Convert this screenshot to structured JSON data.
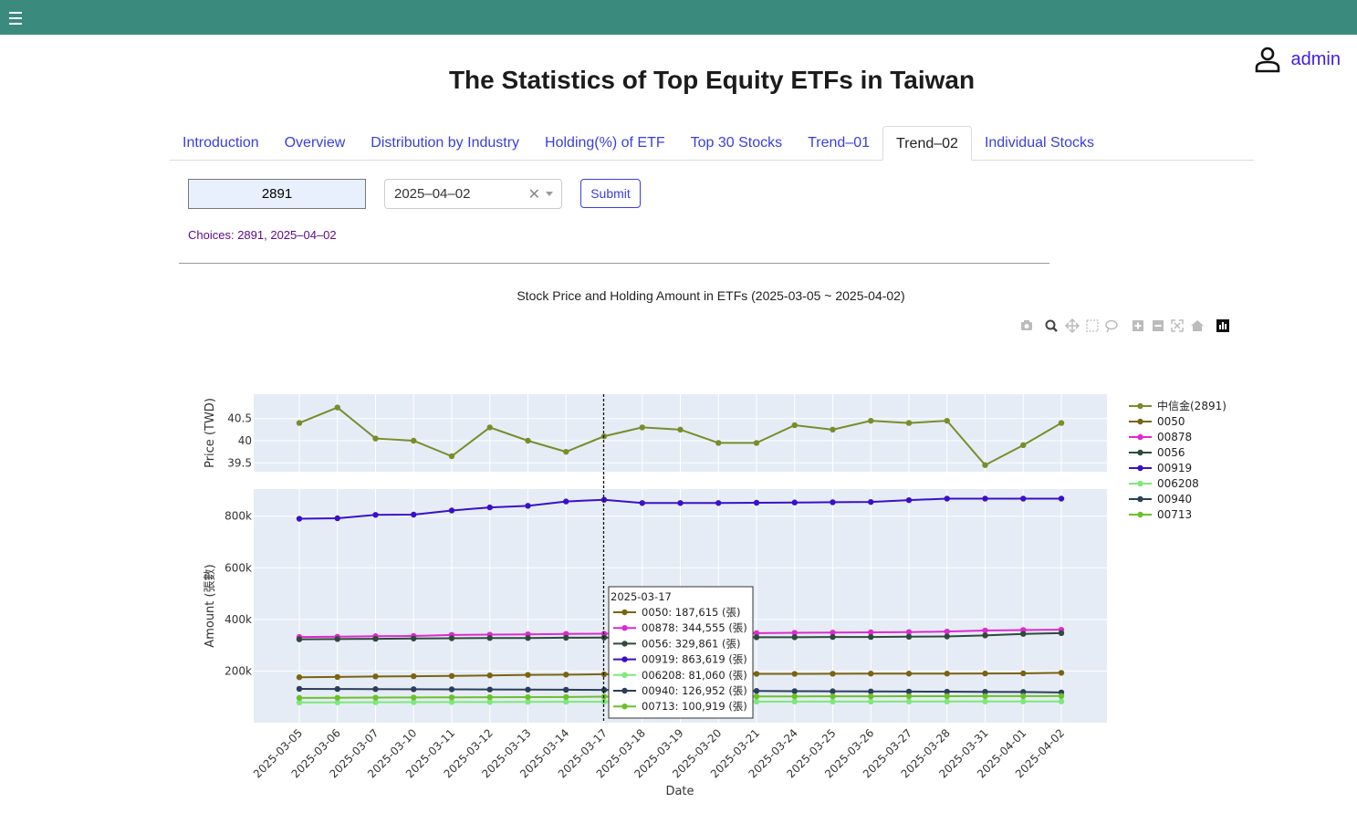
{
  "header": {
    "user": "admin"
  },
  "page": {
    "title": "The Statistics of Top Equity ETFs in Taiwan"
  },
  "tabs": [
    {
      "label": "Introduction"
    },
    {
      "label": "Overview"
    },
    {
      "label": "Distribution by Industry"
    },
    {
      "label": "Holding(%) of ETF"
    },
    {
      "label": "Top 30 Stocks"
    },
    {
      "label": "Trend–01"
    },
    {
      "label": "Trend–02",
      "active": true
    },
    {
      "label": "Individual Stocks"
    }
  ],
  "form": {
    "stock_value": "2891",
    "date_value": "2025–04–02",
    "submit_label": "Submit",
    "choices_text": "Choices: 2891, 2025–04–02"
  },
  "modebar": [
    "camera-icon",
    "zoom-icon",
    "pan-icon",
    "box-select-icon",
    "lasso-icon",
    "zoom-in-icon",
    "zoom-out-icon",
    "autoscale-icon",
    "reset-axes-icon",
    "plotly-logo-icon"
  ],
  "chart_data": {
    "type": "line",
    "title": "Stock Price and Holding Amount in ETFs (2025-03-05 ~ 2025-04-02)",
    "xlabel": "Date",
    "categories": [
      "2025-03-05",
      "2025-03-06",
      "2025-03-07",
      "2025-03-10",
      "2025-03-11",
      "2025-03-12",
      "2025-03-13",
      "2025-03-14",
      "2025-03-17",
      "2025-03-18",
      "2025-03-19",
      "2025-03-20",
      "2025-03-21",
      "2025-03-24",
      "2025-03-25",
      "2025-03-26",
      "2025-03-27",
      "2025-03-28",
      "2025-03-31",
      "2025-04-01",
      "2025-04-02"
    ],
    "price_panel": {
      "ylabel": "Price (TWD)",
      "yticks": [
        {
          "v": 39.5,
          "label": "39.5"
        },
        {
          "v": 40,
          "label": "40"
        },
        {
          "v": 40.5,
          "label": "40.5"
        }
      ],
      "ylim": [
        39.3,
        41.05
      ],
      "series": [
        {
          "name": "中信金(2891)",
          "color": "#7a8c2a",
          "values": [
            40.4,
            40.75,
            40.05,
            40.0,
            39.65,
            40.3,
            40.0,
            39.75,
            40.1,
            40.3,
            40.25,
            39.95,
            39.95,
            40.35,
            40.25,
            40.45,
            40.4,
            40.45,
            39.45,
            39.9,
            40.4
          ]
        }
      ]
    },
    "amount_panel": {
      "ylabel": "Amount (張數)",
      "yticks": [
        {
          "v": 200000,
          "label": "200k"
        },
        {
          "v": 400000,
          "label": "400k"
        },
        {
          "v": 600000,
          "label": "600k"
        },
        {
          "v": 800000,
          "label": "800k"
        }
      ],
      "ylim": [
        0,
        905000
      ],
      "series": [
        {
          "name": "0050",
          "color": "#7a6410",
          "values": [
            176000,
            177000,
            179000,
            180000,
            181000,
            183000,
            185000,
            186000,
            187615,
            188000,
            188000,
            188500,
            189000,
            189000,
            189500,
            190000,
            190000,
            190000,
            190500,
            191000,
            193000
          ]
        },
        {
          "name": "00878",
          "color": "#dd2ad0",
          "values": [
            332000,
            333000,
            335000,
            336000,
            340000,
            341000,
            342000,
            344000,
            344555,
            345000,
            346000,
            346000,
            347000,
            348000,
            349000,
            350000,
            351000,
            353000,
            357000,
            359000,
            360000
          ]
        },
        {
          "name": "0056",
          "color": "#2f4a3a",
          "values": [
            323000,
            324000,
            325000,
            326000,
            327000,
            328000,
            328000,
            329000,
            329861,
            330000,
            330000,
            330500,
            331000,
            331000,
            332000,
            332000,
            333000,
            334000,
            338000,
            344000,
            347000
          ]
        },
        {
          "name": "00919",
          "color": "#3a10c8",
          "values": [
            790000,
            792000,
            805000,
            806000,
            822000,
            834000,
            840000,
            857000,
            863619,
            851000,
            851000,
            851000,
            852000,
            853000,
            854000,
            855000,
            862000,
            868000,
            868000,
            868000,
            868000
          ]
        },
        {
          "name": "006208",
          "color": "#7ee87a",
          "values": [
            78000,
            78500,
            79000,
            79500,
            80000,
            80000,
            80500,
            80800,
            81060,
            81200,
            81300,
            81400,
            81500,
            81600,
            81700,
            81800,
            81900,
            82000,
            82100,
            82200,
            82300
          ]
        },
        {
          "name": "00940",
          "color": "#2c3e5a",
          "values": [
            131000,
            130500,
            130000,
            129500,
            129000,
            128500,
            128000,
            127500,
            126952,
            126000,
            125000,
            124000,
            123000,
            122000,
            121500,
            121000,
            120500,
            120000,
            119500,
            119000,
            117000
          ]
        },
        {
          "name": "00713",
          "color": "#6cc02a",
          "values": [
            96000,
            96500,
            97000,
            97500,
            98000,
            98500,
            99000,
            99500,
            100919,
            101000,
            101200,
            101400,
            101600,
            101800,
            102000,
            102200,
            102400,
            102600,
            102800,
            103000,
            103200
          ]
        }
      ]
    },
    "legend": {
      "placement": "right"
    },
    "hover": {
      "date": "2025-03-17",
      "rows": [
        {
          "text": "0050:  187,615 (張)",
          "color": "#7a6410"
        },
        {
          "text": "00878:  344,555 (張)",
          "color": "#dd2ad0"
        },
        {
          "text": "0056:  329,861 (張)",
          "color": "#2f4a3a"
        },
        {
          "text": "00919:  863,619 (張)",
          "color": "#3a10c8"
        },
        {
          "text": "006208:  81,060 (張)",
          "color": "#7ee87a"
        },
        {
          "text": "00940:  126,952 (張)",
          "color": "#2c3e5a"
        },
        {
          "text": "00713:  100,919 (張)",
          "color": "#6cc02a"
        }
      ]
    }
  }
}
